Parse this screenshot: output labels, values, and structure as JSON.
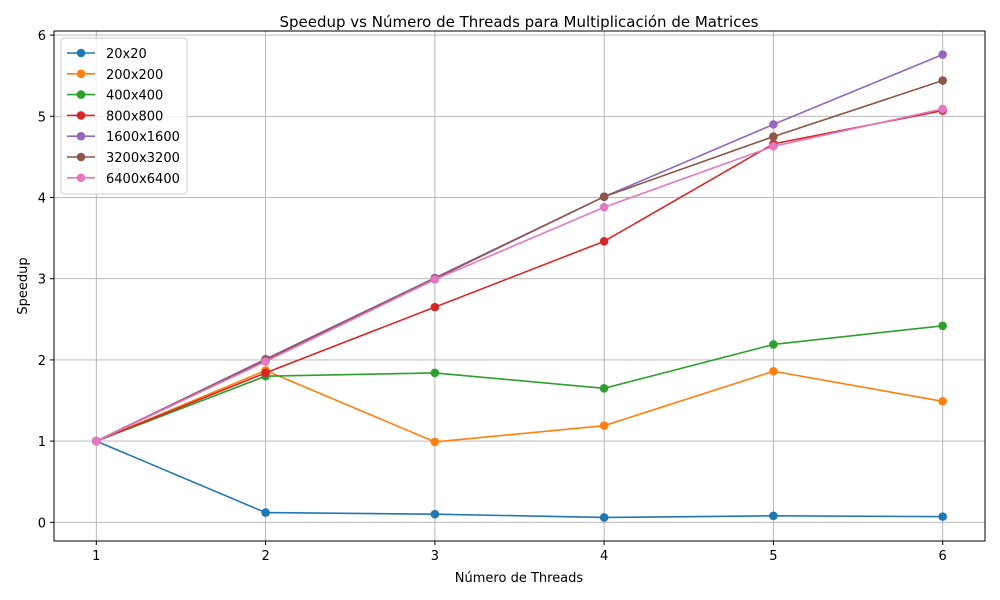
{
  "chart_data": {
    "type": "line",
    "title": "Speedup vs Número de Threads para Multiplicación de Matrices",
    "xlabel": "Número de Threads",
    "ylabel": "Speedup",
    "x": [
      1,
      2,
      3,
      4,
      5,
      6
    ],
    "xticks": [
      "1",
      "2",
      "3",
      "4",
      "5",
      "6"
    ],
    "yticks": [
      "0",
      "1",
      "2",
      "3",
      "4",
      "5",
      "6"
    ],
    "xlim": [
      0.75,
      6.25
    ],
    "ylim": [
      -0.23,
      6.05
    ],
    "grid": true,
    "legend_position": "upper-left",
    "series": [
      {
        "name": "20x20",
        "color": "#1f77b4",
        "values": [
          1.0,
          0.12,
          0.1,
          0.06,
          0.08,
          0.07
        ]
      },
      {
        "name": "200x200",
        "color": "#ff7f0e",
        "values": [
          1.0,
          1.87,
          0.99,
          1.19,
          1.86,
          1.49
        ]
      },
      {
        "name": "400x400",
        "color": "#2ca02c",
        "values": [
          1.0,
          1.8,
          1.84,
          1.65,
          2.19,
          2.42
        ]
      },
      {
        "name": "800x800",
        "color": "#d62728",
        "values": [
          1.0,
          1.84,
          2.65,
          3.46,
          4.66,
          5.07
        ]
      },
      {
        "name": "1600x1600",
        "color": "#9467bd",
        "values": [
          1.0,
          2.01,
          3.01,
          4.01,
          4.9,
          5.76
        ]
      },
      {
        "name": "3200x3200",
        "color": "#8c564b",
        "values": [
          1.0,
          2.0,
          3.0,
          4.01,
          4.75,
          5.44
        ]
      },
      {
        "name": "6400x6400",
        "color": "#e377c2",
        "values": [
          1.0,
          1.98,
          2.99,
          3.88,
          4.63,
          5.09
        ]
      }
    ]
  }
}
